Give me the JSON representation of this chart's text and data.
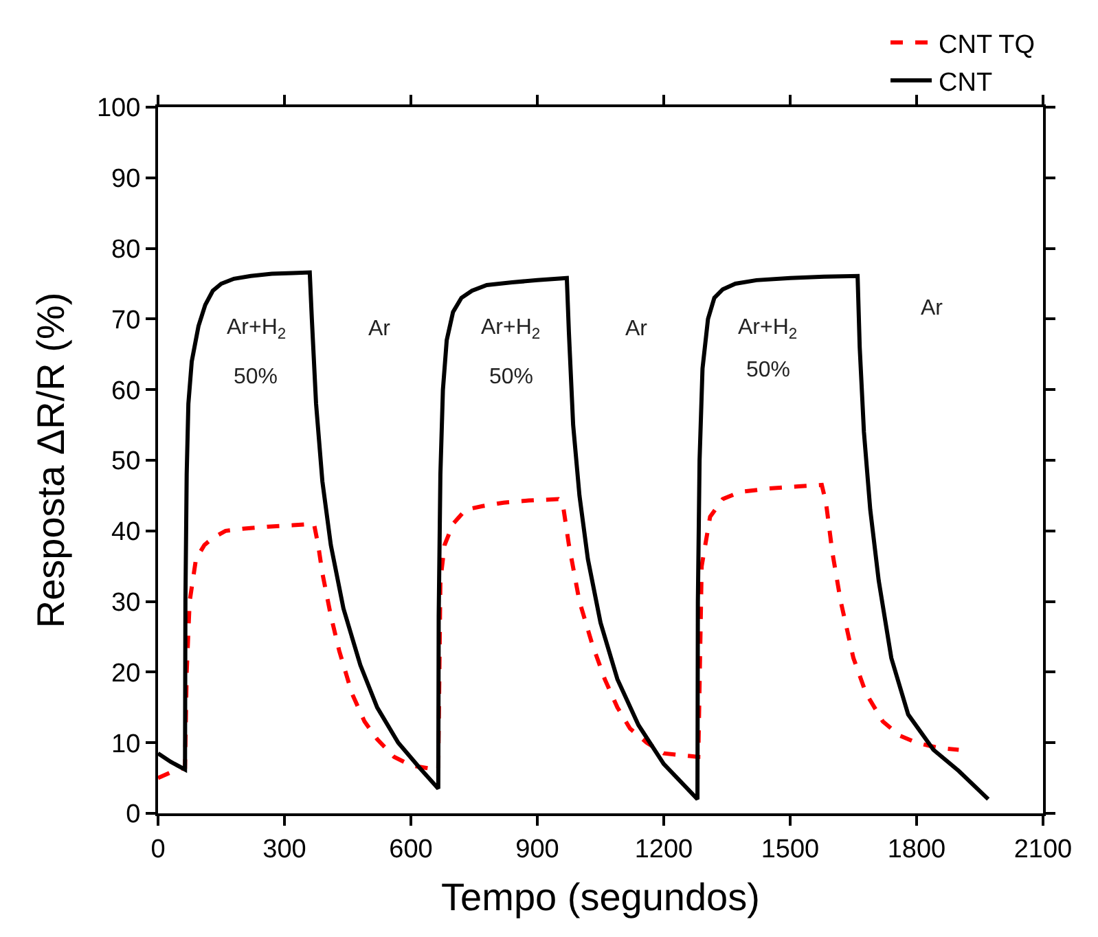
{
  "chart_data": {
    "type": "line",
    "xlabel": "Tempo (segundos)",
    "ylabel": "Resposta ΔR/R (%)",
    "xlim": [
      0,
      2100
    ],
    "xticks": [
      0,
      300,
      600,
      900,
      1200,
      1500,
      1800,
      2100
    ],
    "ylim": [
      0,
      100
    ],
    "yticks": [
      0,
      10,
      20,
      30,
      40,
      50,
      60,
      70,
      80,
      90,
      100
    ],
    "legend": "top right",
    "marker": "none",
    "series": [
      {
        "name": "CNT TQ",
        "color": "#ff0000",
        "line_style": "dashed",
        "x": [
          0,
          30,
          64,
          68,
          75,
          90,
          110,
          130,
          160,
          200,
          260,
          320,
          370,
          380,
          390,
          410,
          430,
          460,
          490,
          520,
          560,
          600,
          660,
          665,
          670,
          680,
          700,
          730,
          770,
          820,
          880,
          950,
          960,
          975,
          1000,
          1030,
          1060,
          1090,
          1120,
          1160,
          1200,
          1280,
          1282,
          1290,
          1310,
          1340,
          1380,
          1450,
          1520,
          1575,
          1585,
          1600,
          1620,
          1650,
          1680,
          1720,
          1760,
          1800,
          1850,
          1900
        ],
        "values": [
          5,
          5.8,
          6.5,
          20,
          30,
          36,
          38,
          39,
          40,
          40.3,
          40.6,
          40.8,
          41,
          38,
          34,
          28,
          23,
          17,
          13,
          10.5,
          8,
          6.8,
          6.2,
          6.2,
          33,
          38,
          41,
          43,
          43.5,
          44,
          44.3,
          44.5,
          44,
          38,
          30,
          24,
          19,
          15,
          12,
          10,
          8.5,
          8,
          8,
          35,
          42,
          44.5,
          45.5,
          46,
          46.3,
          46.5,
          44,
          37,
          30,
          22,
          17,
          13,
          11,
          10,
          9.3,
          9
        ]
      },
      {
        "name": "CNT",
        "color": "#000000",
        "line_style": "solid",
        "x": [
          0,
          30,
          64,
          65,
          68,
          72,
          80,
          96,
          112,
          130,
          150,
          180,
          220,
          270,
          320,
          360,
          365,
          375,
          390,
          410,
          440,
          480,
          520,
          570,
          620,
          665,
          666,
          670,
          676,
          685,
          700,
          720,
          745,
          780,
          840,
          900,
          970,
          975,
          985,
          1000,
          1020,
          1050,
          1090,
          1140,
          1200,
          1280,
          1281,
          1285,
          1292,
          1305,
          1320,
          1340,
          1370,
          1420,
          1500,
          1580,
          1660,
          1665,
          1675,
          1690,
          1710,
          1740,
          1780,
          1840,
          1900,
          1970
        ],
        "values": [
          8.5,
          7.3,
          6.2,
          30,
          48,
          58,
          64,
          69,
          72,
          74,
          75,
          75.7,
          76.1,
          76.4,
          76.5,
          76.6,
          70,
          58,
          47,
          38,
          29,
          21,
          15,
          10,
          6.5,
          3.5,
          28,
          48,
          60,
          67,
          71,
          73,
          74,
          74.8,
          75.2,
          75.5,
          75.8,
          68,
          55,
          45,
          36,
          27,
          19,
          12.5,
          7,
          2,
          30,
          50,
          63,
          70,
          73,
          74.2,
          75,
          75.5,
          75.8,
          76,
          76.1,
          66,
          54,
          43,
          33,
          22,
          14,
          9,
          6,
          2
        ]
      }
    ],
    "annotations": [
      "Ar+H$_{2}$",
      "50%",
      "Ar",
      "Ar+H$_{2}$",
      "50%",
      "Ar",
      "Ar+H$_{2}$",
      "50%",
      "Ar"
    ]
  }
}
